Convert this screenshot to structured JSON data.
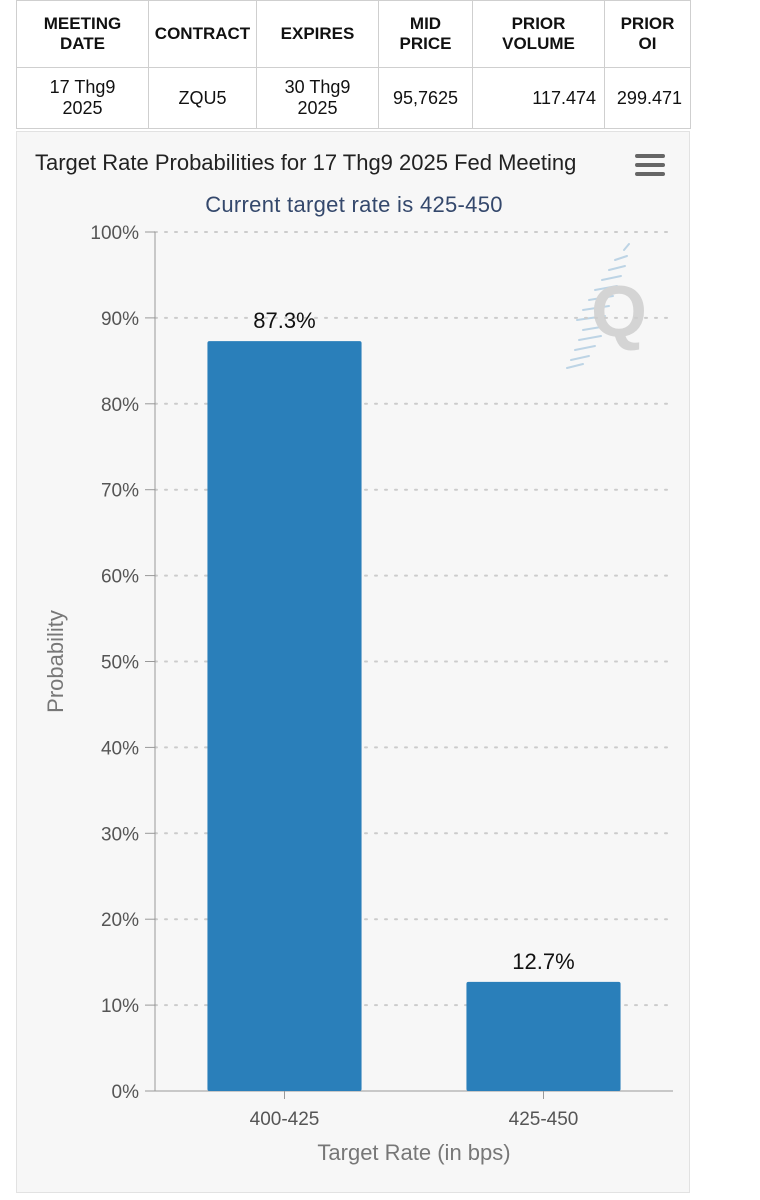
{
  "table": {
    "headers": [
      "MEETING DATE",
      "CONTRACT",
      "EXPIRES",
      "MID PRICE",
      "PRIOR VOLUME",
      "PRIOR OI"
    ],
    "header_lines": [
      [
        "MEETING",
        "DATE"
      ],
      [
        "CONTRACT"
      ],
      [
        "EXPIRES"
      ],
      [
        "MID",
        "PRICE"
      ],
      [
        "PRIOR",
        "VOLUME"
      ],
      [
        "PRIOR",
        "OI"
      ]
    ],
    "row": {
      "meeting_date": [
        "17 Thg9",
        "2025"
      ],
      "contract": "ZQU5",
      "expires": [
        "30 Thg9",
        "2025"
      ],
      "mid_price": "95,7625",
      "prior_volume": "117.474",
      "prior_oi": "299.471"
    }
  },
  "chart_data": {
    "type": "bar",
    "title": "Target Rate Probabilities for 17 Thg9 2025 Fed Meeting",
    "subtitle": "Current target rate is 425-450",
    "xlabel": "Target Rate (in bps)",
    "ylabel": "Probability",
    "categories": [
      "400-425",
      "425-450"
    ],
    "values": [
      87.3,
      12.7
    ],
    "data_labels": [
      "87.3%",
      "12.7%"
    ],
    "ylim": [
      0,
      100
    ],
    "yticks": [
      0,
      10,
      20,
      30,
      40,
      50,
      60,
      70,
      80,
      90,
      100
    ],
    "ytick_labels": [
      "0%",
      "10%",
      "20%",
      "30%",
      "40%",
      "50%",
      "60%",
      "70%",
      "80%",
      "90%",
      "100%"
    ],
    "grid": "dotted horizontal",
    "legend": "none",
    "colors": {
      "bar": "#2a7fba",
      "grid": "#cccccc",
      "axis": "#999999",
      "subtitle": "#34486c"
    }
  },
  "icons": {
    "menu": "hamburger-menu-icon",
    "watermark": "q-logo-watermark"
  }
}
